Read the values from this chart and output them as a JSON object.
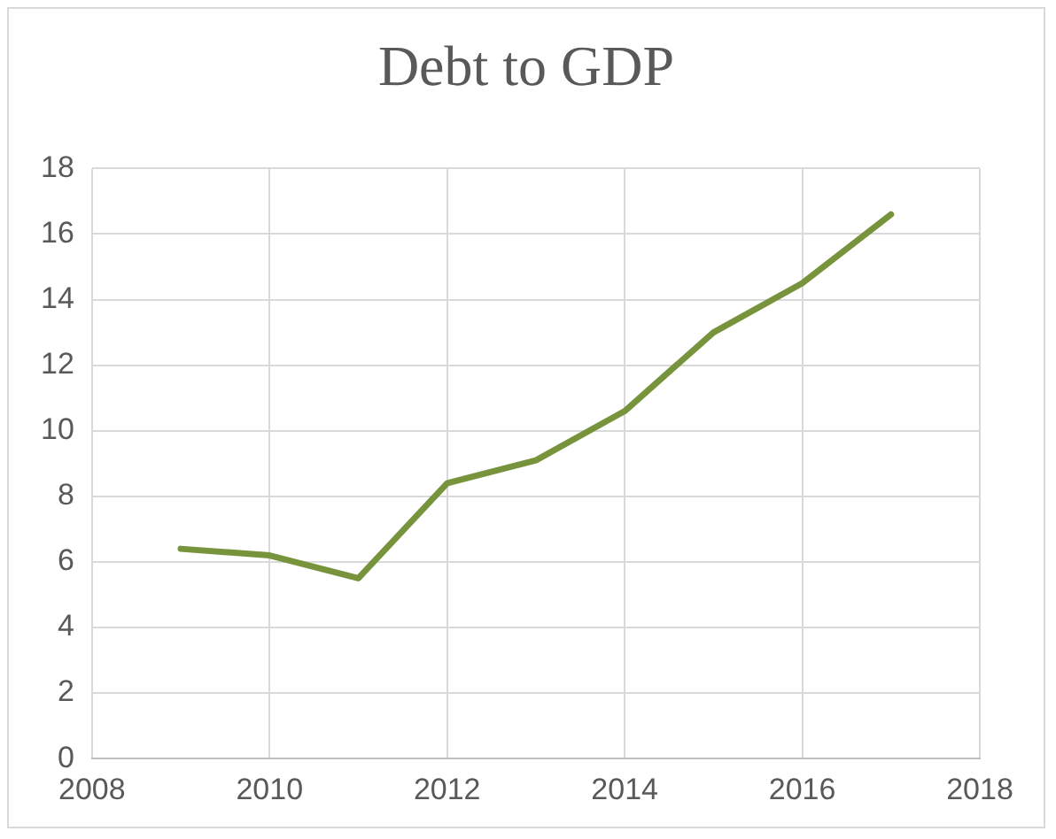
{
  "chart_data": {
    "type": "line",
    "title": "Debt to GDP",
    "x": [
      2009,
      2010,
      2011,
      2012,
      2013,
      2014,
      2015,
      2016,
      2017
    ],
    "series": [
      {
        "color": "#77933c",
        "values": [
          6.4,
          6.2,
          5.5,
          8.4,
          9.1,
          10.6,
          13.0,
          14.5,
          16.6
        ]
      }
    ],
    "xlim": [
      2008,
      2018
    ],
    "xticks": [
      2008,
      2010,
      2012,
      2014,
      2016,
      2018
    ],
    "ylim": [
      0,
      18
    ],
    "yticks": [
      0,
      2,
      4,
      6,
      8,
      10,
      12,
      14,
      16,
      18
    ],
    "grid": true,
    "legend": false,
    "marker": "none",
    "line_style": "solid"
  }
}
